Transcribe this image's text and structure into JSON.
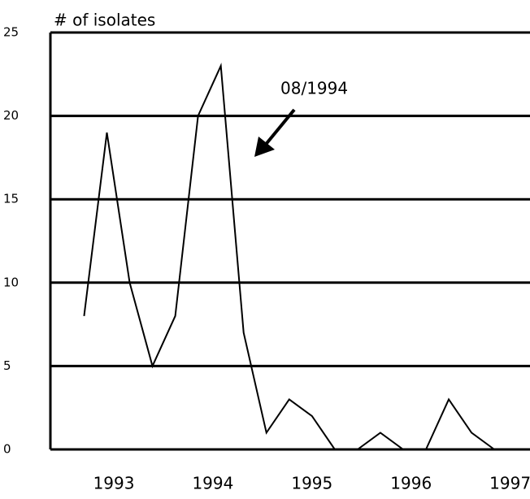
{
  "chart_data": {
    "type": "line",
    "y_axis_label": "# of isolates",
    "annotation": "08/1994",
    "x": [
      1992.7,
      1992.93,
      1993.16,
      1993.39,
      1993.62,
      1993.85,
      1994.08,
      1994.31,
      1994.54,
      1994.77,
      1995.0,
      1995.23,
      1995.46,
      1995.69,
      1995.92,
      1996.15,
      1996.38,
      1996.61,
      1996.84
    ],
    "values": [
      8,
      19,
      10,
      5,
      8,
      20,
      23,
      7,
      1,
      3,
      2,
      0,
      0,
      1,
      0,
      0,
      3,
      1,
      0
    ],
    "color": "#000000",
    "xlim": [
      1992.36,
      1997.2
    ],
    "xticks": [
      1993,
      1994,
      1995,
      1996,
      1997
    ],
    "ylim": [
      0,
      25
    ],
    "yticks": [
      0,
      5,
      10,
      15,
      20,
      25
    ],
    "grid": true
  }
}
